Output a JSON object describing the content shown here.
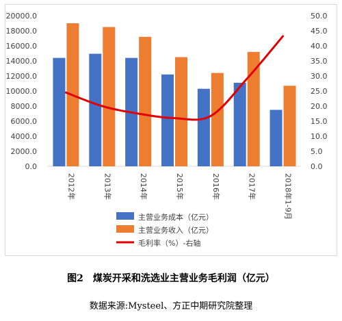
{
  "chart_data": {
    "type": "bar",
    "categories": [
      "2012年",
      "2013年",
      "2014年",
      "2015年",
      "2016年",
      "2017年",
      "2018年1-9月"
    ],
    "series": [
      {
        "name": "主营业务成本（亿元）",
        "type": "bar",
        "axis": "left",
        "color": "#4472C4",
        "values": [
          14400,
          14950,
          14400,
          12200,
          10300,
          11100,
          7500
        ]
      },
      {
        "name": "主营业务收入（亿元）",
        "type": "bar",
        "axis": "left",
        "color": "#ED7D31",
        "values": [
          19000,
          18500,
          17200,
          14500,
          12400,
          15200,
          10700
        ]
      },
      {
        "name": "毛利率（%）-右轴",
        "type": "line",
        "axis": "right",
        "color": "#E00000",
        "values": [
          24.5,
          20.0,
          17.5,
          16.0,
          16.7,
          29.0,
          43.2
        ]
      }
    ],
    "y_left": {
      "ylim": [
        0,
        20000
      ],
      "ticks": [
        "0.0",
        "2000.0",
        "4000.0",
        "6000.0",
        "8000.0",
        "10000.0",
        "12000.0",
        "14000.0",
        "16000.0",
        "18000.0",
        "20000.0"
      ]
    },
    "y_right": {
      "ylim": [
        0,
        50
      ],
      "ticks": [
        "0.0",
        "5.0",
        "10.0",
        "15.0",
        "20.0",
        "25.0",
        "30.0",
        "35.0",
        "40.0",
        "45.0",
        "50.0"
      ]
    },
    "legend_position": "bottom",
    "grid": false
  },
  "caption": {
    "number": "图2",
    "title": "煤炭开采和洗选业主营业务毛利润（亿元）"
  },
  "source": "数据来源:Mysteel、方正中期研究院整理"
}
